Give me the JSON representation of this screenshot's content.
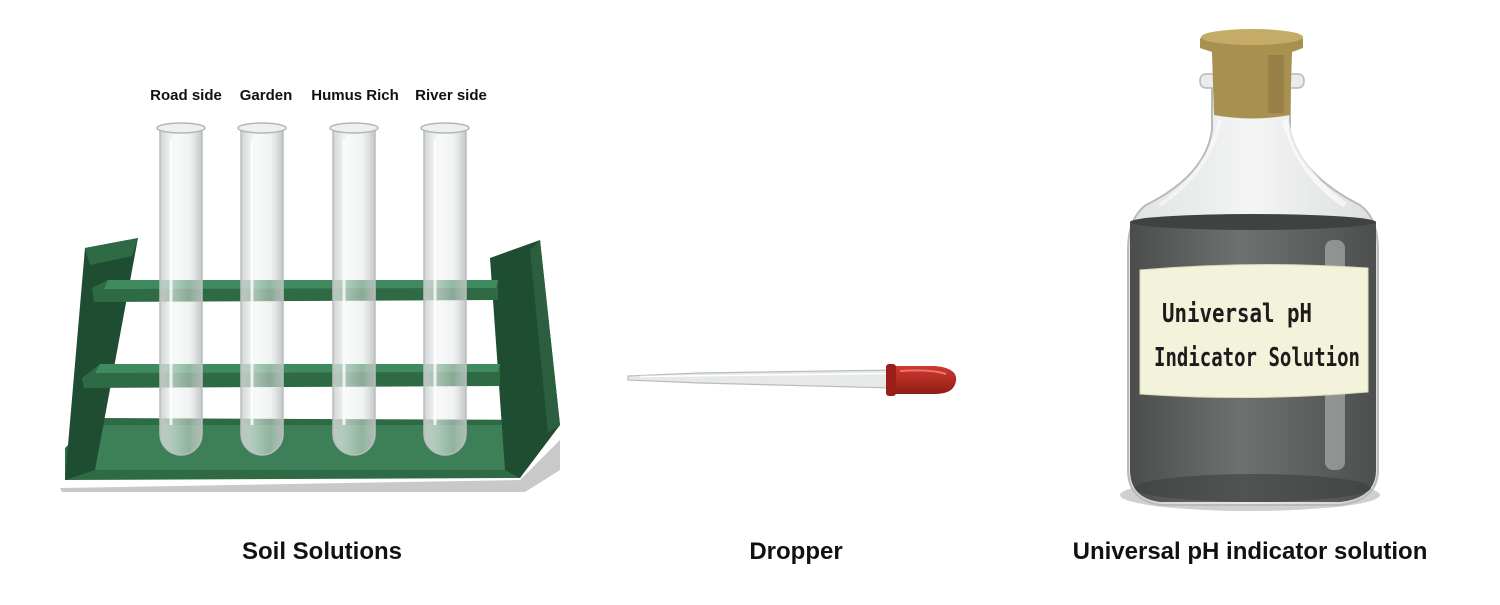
{
  "tube_labels": [
    "Road side",
    "Garden",
    "Humus Rich",
    "River side"
  ],
  "captions": {
    "rack": "Soil Solutions",
    "dropper": "Dropper",
    "bottle": "Universal pH indicator solution"
  },
  "bottle_label": {
    "line1": "Universal pH",
    "line2": "Indicator Solution"
  },
  "colors": {
    "rack_green": "#2e6b45",
    "rack_dark": "#1f4d31",
    "dropper_bulb": "#b3261e",
    "liquid": "#5c5f5e",
    "cork": "#a89050",
    "label_bg": "#f3f3dc"
  }
}
